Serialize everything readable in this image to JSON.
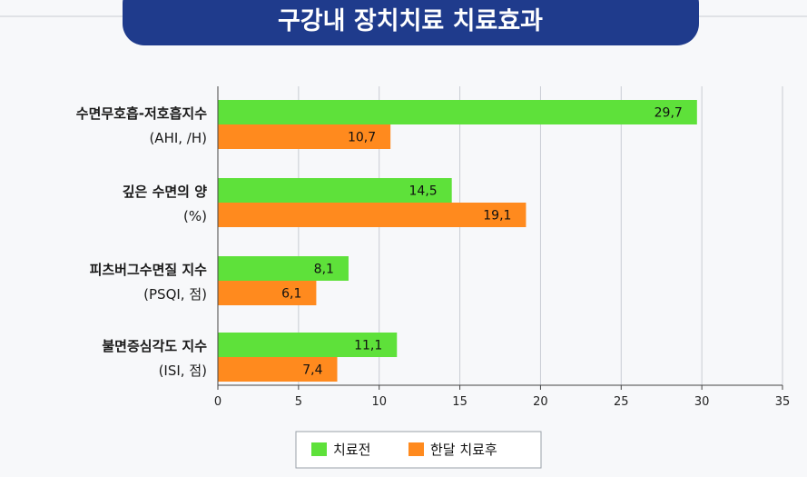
{
  "chart_data": {
    "type": "bar",
    "orientation": "horizontal",
    "title": "구강내 장치치료 치료효과",
    "categories": [
      {
        "name": "수면무호흡-저호흡지수",
        "unit": "(AHI, /H)"
      },
      {
        "name": "깊은 수면의 양",
        "unit": "(%)"
      },
      {
        "name": "피츠버그수면질 지수",
        "unit": "(PSQI, 점)"
      },
      {
        "name": "불면증심각도 지수",
        "unit": "(ISI, 점)"
      }
    ],
    "series": [
      {
        "name": "치료전",
        "values": [
          29.7,
          14.5,
          8.1,
          11.1
        ],
        "labels": [
          "29,7",
          "14,5",
          "8,1",
          "11,1"
        ],
        "color": "#5ee13a"
      },
      {
        "name": "한달 치료후",
        "values": [
          10.7,
          19.1,
          6.1,
          7.4
        ],
        "labels": [
          "10,7",
          "19,1",
          "6,1",
          "7,4"
        ],
        "color": "#ff8a1e"
      }
    ],
    "xlim": [
      0,
      35
    ],
    "xticks": [
      0,
      5,
      10,
      15,
      20,
      25,
      30,
      35
    ],
    "grid": true,
    "legend": "bottom-center",
    "colors": {
      "title_bg": "#1f3b8c",
      "grid": "#c9ccd3",
      "axis": "#444444"
    }
  }
}
